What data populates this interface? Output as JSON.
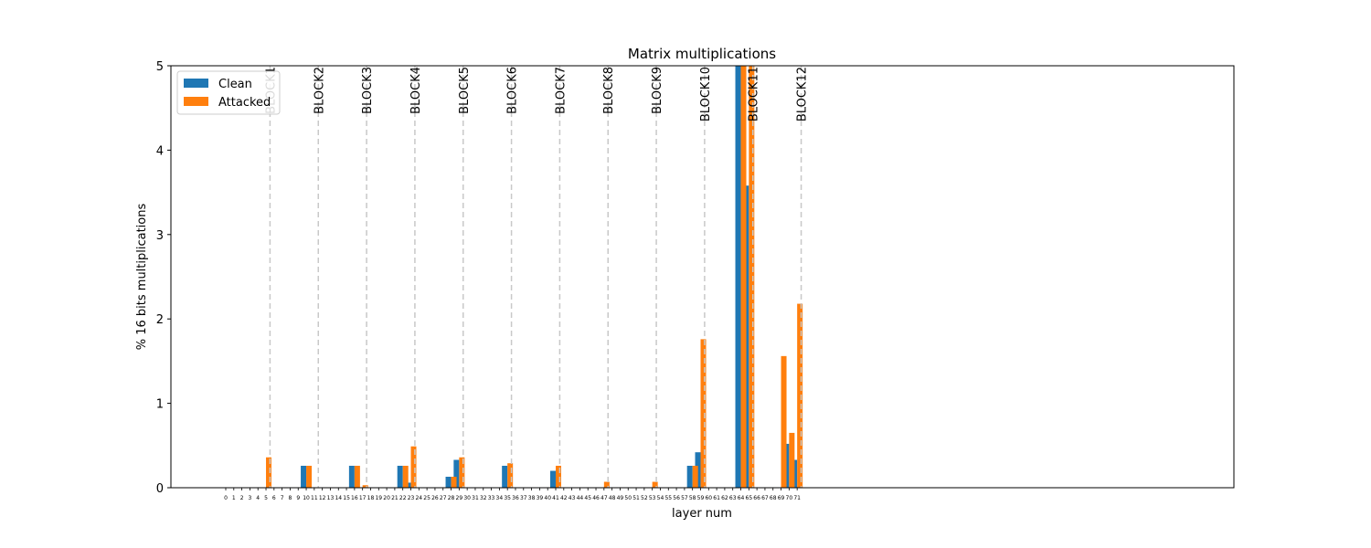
{
  "chart_data": {
    "type": "bar",
    "title": "Matrix multiplications",
    "xlabel": "layer num",
    "ylabel": "% 16 bits multiplications",
    "ylim": [
      0,
      5
    ],
    "yticks": [
      "0",
      "1",
      "2",
      "3",
      "4",
      "5"
    ],
    "categories": [
      "0",
      "1",
      "2",
      "3",
      "4",
      "5",
      "6",
      "7",
      "8",
      "9",
      "10",
      "11",
      "12",
      "13",
      "14",
      "15",
      "16",
      "17",
      "18",
      "19",
      "20",
      "21",
      "22",
      "23",
      "24",
      "25",
      "26",
      "27",
      "28",
      "29",
      "30",
      "31",
      "32",
      "33",
      "34",
      "35",
      "36",
      "37",
      "38",
      "39",
      "40",
      "41",
      "42",
      "43",
      "44",
      "45",
      "46",
      "47",
      "48",
      "49",
      "50",
      "51",
      "52",
      "53",
      "54",
      "55",
      "56",
      "57",
      "58",
      "59",
      "60",
      "61",
      "62",
      "63",
      "64",
      "65",
      "66",
      "67",
      "68",
      "69",
      "70",
      "71"
    ],
    "series": [
      {
        "name": "Clean",
        "color": "#1f77b4",
        "values": [
          0,
          0,
          0,
          0,
          0,
          0,
          0,
          0,
          0,
          0,
          0.26,
          0,
          0,
          0,
          0,
          0,
          0.26,
          0,
          0,
          0,
          0,
          0,
          0.26,
          0.06,
          0,
          0,
          0,
          0,
          0.13,
          0.33,
          0,
          0,
          0,
          0,
          0,
          0.26,
          0,
          0,
          0,
          0,
          0,
          0.2,
          0,
          0,
          0,
          0,
          0,
          0,
          0,
          0,
          0,
          0,
          0,
          0,
          0,
          0,
          0,
          0,
          0.26,
          0.42,
          0,
          0,
          0,
          0,
          5.0,
          3.58,
          0,
          0,
          0,
          0,
          0.52,
          0.33
        ]
      },
      {
        "name": "Attacked",
        "color": "#ff7f0e",
        "values": [
          0,
          0,
          0,
          0,
          0,
          0.36,
          0,
          0,
          0,
          0,
          0.26,
          0,
          0,
          0,
          0,
          0,
          0.26,
          0.03,
          0,
          0,
          0,
          0,
          0.26,
          0.49,
          0,
          0,
          0,
          0,
          0.13,
          0.36,
          0,
          0,
          0,
          0,
          0,
          0.29,
          0,
          0,
          0,
          0,
          0,
          0.26,
          0,
          0,
          0,
          0,
          0,
          0.07,
          0,
          0,
          0,
          0,
          0,
          0.07,
          0,
          0,
          0,
          0,
          0.26,
          1.76,
          0,
          0,
          0,
          0,
          5.0,
          5.0,
          0,
          0,
          0,
          1.56,
          0.65,
          2.18
        ]
      }
    ],
    "block_markers": [
      {
        "label": "BLOCK1",
        "x": 5.5
      },
      {
        "label": "BLOCK2",
        "x": 11.5
      },
      {
        "label": "BLOCK3",
        "x": 17.5
      },
      {
        "label": "BLOCK4",
        "x": 23.5
      },
      {
        "label": "BLOCK5",
        "x": 29.5
      },
      {
        "label": "BLOCK6",
        "x": 35.5
      },
      {
        "label": "BLOCK7",
        "x": 41.5
      },
      {
        "label": "BLOCK8",
        "x": 47.5
      },
      {
        "label": "BLOCK9",
        "x": 53.5
      },
      {
        "label": "BLOCK10",
        "x": 59.5
      },
      {
        "label": "BLOCK11",
        "x": 65.5
      },
      {
        "label": "BLOCK12",
        "x": 71.5
      }
    ],
    "legend": {
      "placement": "top-left",
      "entries": [
        "Clean",
        "Attacked"
      ]
    },
    "grid": false
  }
}
